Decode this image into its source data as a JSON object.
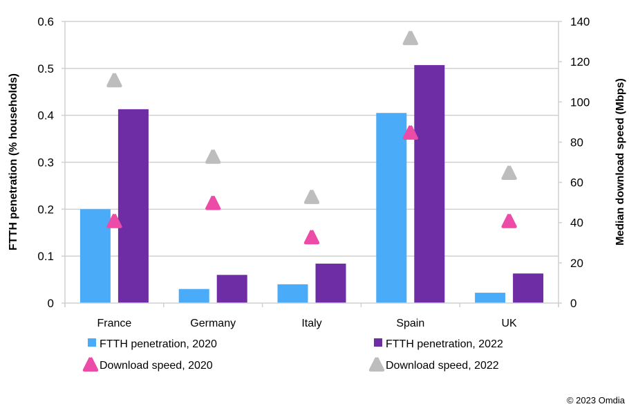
{
  "chart_data": {
    "type": "bar",
    "title": "",
    "categories": [
      "France",
      "Germany",
      "Italy",
      "Spain",
      "UK"
    ],
    "series": [
      {
        "name": "FTTH penetration, 2020",
        "kind": "bar",
        "axis": "left",
        "color": "#4AACF8",
        "values": [
          0.2,
          0.03,
          0.04,
          0.405,
          0.022
        ]
      },
      {
        "name": "FTTH penetration, 2022",
        "kind": "bar",
        "axis": "left",
        "color": "#6E2CA5",
        "values": [
          0.413,
          0.06,
          0.084,
          0.507,
          0.063
        ]
      },
      {
        "name": "Download speed, 2020",
        "kind": "marker-triangle",
        "axis": "right",
        "color": "#EC4BA8",
        "values": [
          41,
          50,
          33,
          85,
          41
        ]
      },
      {
        "name": "Download speed, 2022",
        "kind": "marker-triangle",
        "axis": "right",
        "color": "#BDBDBD",
        "values": [
          111,
          73,
          53,
          132,
          65
        ]
      }
    ],
    "left_axis": {
      "label": "FTTH penetration (% households)",
      "ylim": [
        0,
        0.6
      ],
      "ticks": [
        "0",
        "0.1",
        "0.2",
        "0.3",
        "0.4",
        "0.5",
        "0.6"
      ]
    },
    "right_axis": {
      "label": "Median download speed (Mbps)",
      "ylim": [
        0,
        140
      ],
      "ticks": [
        "0",
        "20",
        "40",
        "60",
        "80",
        "100",
        "120",
        "140"
      ]
    },
    "grid": true,
    "legend_position": "bottom"
  },
  "footer": {
    "copyright": "© 2023 Omdia"
  }
}
